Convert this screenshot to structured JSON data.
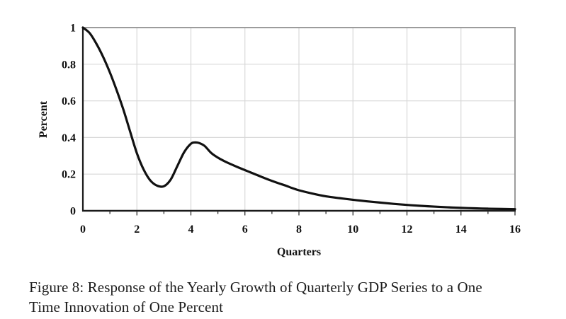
{
  "figure": {
    "caption_lines": [
      "Figure 8: Response of the Yearly Growth of Quarterly GDP Series to a One",
      "Time Innovation of One Percent"
    ]
  },
  "chart_data": {
    "type": "line",
    "title": "",
    "xlabel": "Quarters",
    "ylabel": "Percent",
    "xlim": [
      0,
      16
    ],
    "ylim": [
      0,
      1
    ],
    "grid": true,
    "legend": "none",
    "x_tick_values": [
      0,
      2,
      4,
      6,
      8,
      10,
      12,
      14,
      16
    ],
    "x_tick_labels": [
      "0",
      "2",
      "4",
      "6",
      "8",
      "10",
      "12",
      "14",
      "16"
    ],
    "x_minor_tick_step": 1,
    "y_tick_values": [
      0,
      0.2,
      0.4,
      0.6,
      0.8,
      1
    ],
    "y_tick_labels": [
      "0",
      "0.2",
      "0.4",
      "0.6",
      "0.8",
      "1"
    ],
    "series": [
      {
        "name": "impulse response",
        "color": "#111111",
        "points": [
          [
            0,
            1.0
          ],
          [
            0.25,
            0.97
          ],
          [
            0.5,
            0.912
          ],
          [
            0.75,
            0.84
          ],
          [
            1,
            0.755
          ],
          [
            1.25,
            0.658
          ],
          [
            1.5,
            0.552
          ],
          [
            1.75,
            0.432
          ],
          [
            2,
            0.314
          ],
          [
            2.25,
            0.225
          ],
          [
            2.5,
            0.165
          ],
          [
            2.75,
            0.137
          ],
          [
            3,
            0.134
          ],
          [
            3.25,
            0.17
          ],
          [
            3.5,
            0.245
          ],
          [
            3.75,
            0.32
          ],
          [
            4,
            0.366
          ],
          [
            4.15,
            0.373
          ],
          [
            4.3,
            0.37
          ],
          [
            4.5,
            0.355
          ],
          [
            4.75,
            0.316
          ],
          [
            5,
            0.29
          ],
          [
            5.25,
            0.27
          ],
          [
            5.5,
            0.253
          ],
          [
            5.75,
            0.237
          ],
          [
            6,
            0.222
          ],
          [
            6.25,
            0.207
          ],
          [
            6.5,
            0.192
          ],
          [
            6.75,
            0.177
          ],
          [
            7,
            0.163
          ],
          [
            7.25,
            0.15
          ],
          [
            7.5,
            0.138
          ],
          [
            7.75,
            0.124
          ],
          [
            8,
            0.112
          ],
          [
            8.5,
            0.094
          ],
          [
            9,
            0.079
          ],
          [
            9.5,
            0.069
          ],
          [
            10,
            0.06
          ],
          [
            10.5,
            0.052
          ],
          [
            11,
            0.045
          ],
          [
            11.5,
            0.038
          ],
          [
            12,
            0.032
          ],
          [
            12.5,
            0.027
          ],
          [
            13,
            0.023
          ],
          [
            13.5,
            0.019
          ],
          [
            14,
            0.016
          ],
          [
            14.5,
            0.0135
          ],
          [
            15,
            0.0115
          ],
          [
            15.5,
            0.01
          ],
          [
            16,
            0.009
          ]
        ]
      }
    ]
  },
  "colors": {
    "background": "#ffffff",
    "grid": "#d8d8d8",
    "plot_border": "#9c9c9c",
    "axis": "#1a1a1a",
    "text": "#111111"
  }
}
